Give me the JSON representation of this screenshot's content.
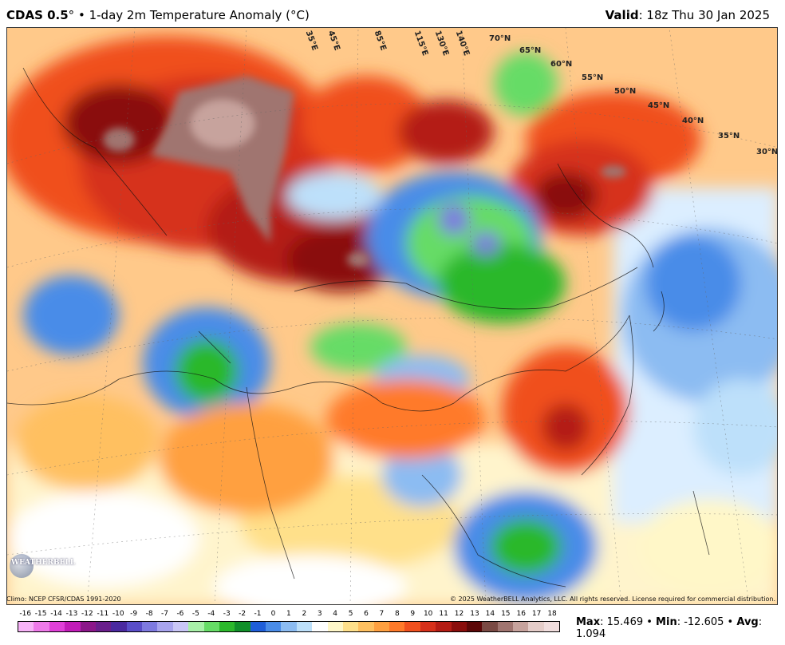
{
  "header": {
    "model": "CDAS 0.5",
    "degree": "°",
    "bullet": "•",
    "product": "1-day 2m Temperature Anomaly (°C)",
    "valid_label": "Valid",
    "valid_value": ": 18z Thu 30 Jan 2025"
  },
  "map": {
    "lat_labels": [
      "70°N",
      "65°N",
      "60°N",
      "55°N",
      "50°N",
      "45°N",
      "40°N",
      "35°N",
      "30°N"
    ],
    "lon_labels": [
      "35°E",
      "45°E",
      "85°E",
      "115°E",
      "130°E",
      "140°E"
    ],
    "logo_text": "WEATHERBELL"
  },
  "footer": {
    "climo": "Climo: NCEP CFSR/CDAS 1991-2020",
    "copyright": "© 2025 WeatherBELL Analytics, LLC. All rights reserved. License required for commercial distribution."
  },
  "legend": {
    "ticks": [
      "-16",
      "-15",
      "-14",
      "-13",
      "-12",
      "-11",
      "-10",
      "-9",
      "-8",
      "-7",
      "-6",
      "-5",
      "-4",
      "-3",
      "-2",
      "-1",
      "0",
      "1",
      "2",
      "3",
      "4",
      "5",
      "6",
      "7",
      "8",
      "9",
      "10",
      "11",
      "12",
      "13",
      "14",
      "15",
      "16",
      "17",
      "18"
    ],
    "colors": [
      "#f7b3f7",
      "#ee7ae9",
      "#e040d8",
      "#c21cb8",
      "#8c178a",
      "#6a1f8c",
      "#4b2aa0",
      "#5a4ec8",
      "#7e7ae0",
      "#a8a4ee",
      "#c9c6f6",
      "#a8f0a8",
      "#66dc66",
      "#2cb82c",
      "#118f2a",
      "#1f5ed9",
      "#4a8ce8",
      "#8cbcf2",
      "#bde0fa",
      "#ffffff",
      "#fff7c8",
      "#ffe08a",
      "#ffc060",
      "#ffa040",
      "#ff7a2a",
      "#f0501e",
      "#d6301a",
      "#b41c14",
      "#8a0e0c",
      "#5c0808",
      "#7a4a44",
      "#a07570",
      "#c7a39d",
      "#e5cdc9",
      "#f1dede"
    ]
  },
  "stats": {
    "max_label": "Max",
    "max_value": ": 15.469",
    "sep": " • ",
    "min_label": "Min",
    "min_value": ": -12.605",
    "avg_label": "Avg",
    "avg_value": ": 1.094"
  }
}
